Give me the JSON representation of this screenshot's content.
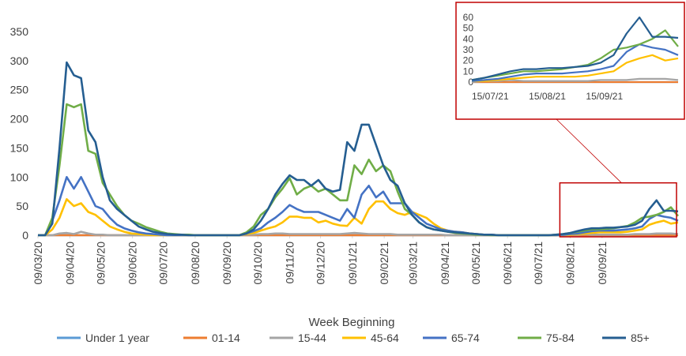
{
  "chart_data": {
    "type": "line",
    "title": "",
    "xlabel": "Week Beginning",
    "ylabel": "",
    "ylim": [
      0,
      350
    ],
    "y_ticks": [
      0,
      50,
      100,
      150,
      200,
      250,
      300,
      350
    ],
    "grid": false,
    "legend_position": "bottom",
    "x_start": "2020-03-09",
    "x_tick_labels": [
      "09/03/20",
      "09/04/20",
      "09/05/20",
      "09/06/20",
      "09/07/20",
      "09/08/20",
      "09/09/20",
      "09/10/20",
      "09/11/20",
      "09/12/20",
      "09/01/21",
      "09/02/21",
      "09/03/21",
      "09/04/21",
      "09/05/21",
      "09/06/21",
      "09/07/21",
      "09/08/21",
      "09/09/21"
    ],
    "series": [
      {
        "name": "Under 1 year",
        "color": "#5B9BD5",
        "values": [
          0,
          0,
          0,
          0,
          0,
          0,
          0,
          0,
          0,
          0,
          0,
          0,
          0,
          0,
          0,
          0,
          0,
          0,
          0,
          0,
          0,
          0,
          0,
          0,
          0,
          0,
          0,
          0,
          0,
          0,
          0,
          0,
          0,
          0,
          0,
          0,
          0,
          0,
          0,
          0,
          0,
          0,
          0,
          0,
          0,
          0,
          0,
          0,
          0,
          0,
          0,
          0,
          0,
          0,
          0,
          0,
          0,
          0,
          0,
          0,
          0,
          0,
          0,
          0,
          0,
          0,
          0,
          0,
          0,
          0,
          0,
          0,
          0,
          0,
          0,
          0,
          0,
          0,
          0,
          0,
          0,
          0,
          0,
          0,
          0,
          0,
          0,
          0,
          0,
          0
        ]
      },
      {
        "name": "01-14",
        "color": "#ED7D31",
        "values": [
          0,
          0,
          0,
          0,
          0,
          0,
          0,
          0,
          0,
          0,
          0,
          0,
          0,
          0,
          0,
          0,
          0,
          0,
          0,
          0,
          0,
          0,
          0,
          0,
          0,
          0,
          0,
          0,
          0,
          0,
          0,
          0,
          0,
          0,
          0,
          0,
          0,
          0,
          0,
          0,
          0,
          0,
          0,
          0,
          0,
          0,
          0,
          0,
          0,
          0,
          0,
          0,
          0,
          0,
          0,
          0,
          0,
          0,
          0,
          0,
          0,
          0,
          0,
          0,
          0,
          0,
          0,
          0,
          0,
          0,
          0,
          0,
          0,
          0,
          0,
          0,
          0,
          0,
          0,
          0,
          0,
          0,
          0,
          0,
          0,
          0,
          0,
          0,
          0,
          0
        ]
      },
      {
        "name": "15-44",
        "color": "#A5A5A5",
        "values": [
          0,
          0,
          0,
          3,
          4,
          2,
          6,
          3,
          1,
          1,
          0,
          0,
          0,
          0,
          0,
          0,
          0,
          0,
          0,
          0,
          0,
          0,
          0,
          0,
          0,
          0,
          0,
          0,
          0,
          1,
          1,
          2,
          2,
          3,
          3,
          2,
          2,
          2,
          2,
          2,
          2,
          2,
          2,
          3,
          4,
          3,
          2,
          2,
          2,
          2,
          1,
          1,
          1,
          1,
          1,
          1,
          1,
          0,
          0,
          0,
          0,
          0,
          0,
          0,
          0,
          0,
          0,
          0,
          0,
          0,
          0,
          0,
          0,
          0,
          1,
          1,
          2,
          1,
          1,
          1,
          1,
          1,
          1,
          2,
          2,
          2,
          3,
          3,
          3,
          2
        ]
      },
      {
        "name": "45-64",
        "color": "#FFC000",
        "values": [
          0,
          0,
          10,
          30,
          62,
          50,
          55,
          40,
          35,
          25,
          15,
          10,
          6,
          3,
          2,
          1,
          0,
          0,
          0,
          0,
          0,
          0,
          0,
          0,
          0,
          0,
          0,
          0,
          0,
          2,
          4,
          8,
          12,
          15,
          22,
          32,
          32,
          30,
          30,
          22,
          25,
          20,
          17,
          16,
          30,
          20,
          45,
          58,
          58,
          45,
          38,
          35,
          40,
          35,
          30,
          20,
          12,
          8,
          6,
          5,
          3,
          2,
          1,
          1,
          0,
          0,
          0,
          0,
          0,
          0,
          0,
          0,
          0,
          1,
          1,
          2,
          3,
          4,
          5,
          5,
          5,
          5,
          6,
          8,
          10,
          18,
          22,
          25,
          20,
          22
        ]
      },
      {
        "name": "65-74",
        "color": "#4472C4",
        "values": [
          0,
          0,
          25,
          60,
          100,
          80,
          100,
          75,
          50,
          45,
          30,
          18,
          12,
          8,
          5,
          3,
          2,
          1,
          0,
          0,
          0,
          0,
          0,
          0,
          0,
          0,
          0,
          0,
          0,
          3,
          7,
          12,
          22,
          30,
          40,
          52,
          45,
          40,
          40,
          40,
          35,
          30,
          25,
          45,
          30,
          70,
          85,
          65,
          75,
          55,
          55,
          55,
          40,
          30,
          20,
          15,
          10,
          8,
          6,
          5,
          3,
          2,
          1,
          1,
          0,
          0,
          0,
          0,
          0,
          0,
          0,
          0,
          0,
          1,
          2,
          3,
          5,
          7,
          8,
          8,
          8,
          9,
          10,
          12,
          15,
          28,
          35,
          32,
          30,
          25
        ]
      },
      {
        "name": "75-84",
        "color": "#70AD47",
        "values": [
          0,
          0,
          30,
          120,
          225,
          220,
          225,
          145,
          140,
          90,
          70,
          50,
          35,
          25,
          20,
          14,
          10,
          6,
          3,
          2,
          1,
          1,
          0,
          0,
          0,
          0,
          0,
          0,
          0,
          5,
          15,
          35,
          45,
          65,
          80,
          98,
          70,
          80,
          85,
          75,
          80,
          70,
          60,
          60,
          120,
          105,
          130,
          110,
          120,
          110,
          75,
          45,
          35,
          22,
          14,
          10,
          8,
          6,
          4,
          3,
          2,
          1,
          1,
          0,
          0,
          0,
          0,
          0,
          0,
          0,
          0,
          0,
          1,
          2,
          4,
          6,
          8,
          10,
          10,
          11,
          12,
          14,
          16,
          22,
          30,
          32,
          35,
          40,
          48,
          33
        ]
      },
      {
        "name": "85+",
        "color": "#255E91",
        "values": [
          0,
          0,
          20,
          150,
          297,
          275,
          270,
          180,
          160,
          100,
          60,
          45,
          35,
          25,
          15,
          10,
          6,
          4,
          2,
          1,
          1,
          0,
          0,
          0,
          0,
          0,
          0,
          0,
          0,
          3,
          10,
          25,
          45,
          70,
          88,
          103,
          95,
          95,
          85,
          95,
          80,
          75,
          78,
          160,
          145,
          190,
          190,
          155,
          120,
          95,
          85,
          55,
          35,
          22,
          14,
          10,
          8,
          6,
          5,
          4,
          3,
          2,
          1,
          1,
          0,
          0,
          0,
          0,
          0,
          0,
          0,
          0,
          1,
          2,
          4,
          7,
          10,
          12,
          12,
          13,
          13,
          14,
          15,
          18,
          25,
          45,
          60,
          42,
          42,
          41
        ]
      }
    ],
    "inset": {
      "ylim": [
        0,
        60
      ],
      "y_ticks": [
        0,
        10,
        20,
        30,
        40,
        50,
        60
      ],
      "x_tick_labels": [
        "15/07/21",
        "15/08/21",
        "15/09/21"
      ],
      "x_start": "2021-07-05",
      "frame_color": "#C00000"
    }
  }
}
